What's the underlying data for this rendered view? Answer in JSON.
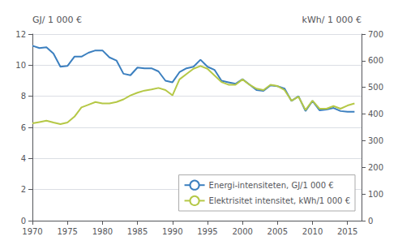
{
  "chart_data": {
    "type": "line",
    "y_label": "GJ/ 1 000 €",
    "y2_label": "kWh/ 1 000 €",
    "x": [
      1970,
      1971,
      1972,
      1973,
      1974,
      1975,
      1976,
      1977,
      1978,
      1979,
      1980,
      1981,
      1982,
      1983,
      1984,
      1985,
      1986,
      1987,
      1988,
      1989,
      1990,
      1991,
      1992,
      1993,
      1994,
      1995,
      1996,
      1997,
      1998,
      1999,
      2000,
      2001,
      2002,
      2003,
      2004,
      2005,
      2006,
      2007,
      2008,
      2009,
      2010,
      2011,
      2012,
      2013,
      2014,
      2015,
      2016
    ],
    "series": [
      {
        "name": "Energi-intensiteten, GJ/1 000 €",
        "color": "#3b7fbf",
        "values": [
          11.25,
          11.1,
          11.15,
          10.75,
          9.9,
          9.95,
          10.55,
          10.55,
          10.8,
          10.95,
          10.95,
          10.5,
          10.3,
          9.45,
          9.35,
          9.85,
          9.8,
          9.8,
          9.6,
          9.0,
          8.9,
          9.55,
          9.8,
          9.9,
          10.35,
          9.9,
          9.7,
          9.0,
          8.9,
          8.8,
          9.1,
          8.75,
          8.4,
          8.35,
          8.7,
          8.65,
          8.5,
          7.7,
          8.0,
          7.05,
          7.7,
          7.1,
          7.15,
          7.25,
          7.05,
          7.0,
          7.0
        ]
      },
      {
        "name": "Elektrisitet intensitet, kWh/1 000 €",
        "color": "#b5c846",
        "axis": "y2",
        "values": [
          365,
          370,
          375,
          368,
          362,
          368,
          390,
          425,
          435,
          445,
          440,
          440,
          445,
          455,
          470,
          480,
          488,
          492,
          498,
          490,
          470,
          530,
          550,
          570,
          580,
          570,
          545,
          520,
          510,
          510,
          530,
          510,
          495,
          490,
          510,
          505,
          490,
          450,
          465,
          415,
          450,
          420,
          420,
          430,
          420,
          432,
          440
        ]
      }
    ],
    "xlim": [
      1970,
      2017
    ],
    "xticks": [
      1970,
      1975,
      1980,
      1985,
      1990,
      1995,
      2000,
      2005,
      2010,
      2015
    ],
    "ylim": [
      0,
      12
    ],
    "yticks": [
      0,
      2,
      4,
      6,
      8,
      10,
      12
    ],
    "y2lim": [
      0,
      700
    ],
    "y2ticks": [
      0,
      100,
      200,
      300,
      400,
      500,
      600,
      700
    ],
    "grid": true,
    "legend": "lower right"
  }
}
